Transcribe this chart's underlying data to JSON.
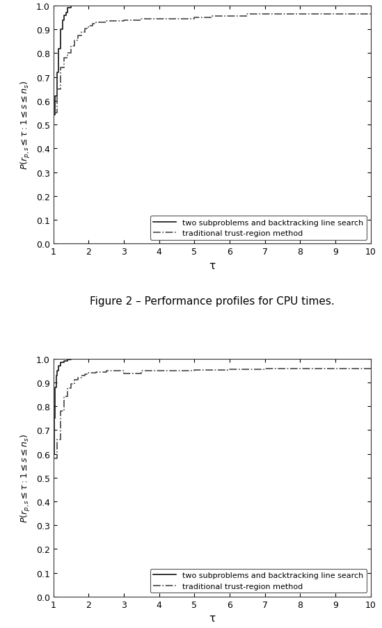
{
  "figure_caption": "Figure 2 – Performance profiles for CPU times.",
  "xlabel": "τ",
  "xlim": [
    1,
    10
  ],
  "ylim": [
    0,
    1.0
  ],
  "xticks": [
    1,
    2,
    3,
    4,
    5,
    6,
    7,
    8,
    9,
    10
  ],
  "yticks": [
    0,
    0.1,
    0.2,
    0.3,
    0.4,
    0.5,
    0.6,
    0.7,
    0.8,
    0.9,
    1.0
  ],
  "legend_labels": [
    "two subproblems and backtracking line search",
    "traditional trust-region method"
  ],
  "line1_color": "#111111",
  "line2_color": "#444444",
  "background_color": "#ffffff",
  "plot1": {
    "solid_x": [
      1.0,
      1.05,
      1.1,
      1.15,
      1.2,
      1.25,
      1.3,
      1.35,
      1.4,
      1.5,
      1.65,
      10.0
    ],
    "solid_y": [
      0.54,
      0.62,
      0.72,
      0.82,
      0.9,
      0.94,
      0.96,
      0.97,
      0.99,
      1.0,
      1.0,
      1.0
    ],
    "dash_x": [
      1.0,
      1.1,
      1.2,
      1.3,
      1.4,
      1.5,
      1.6,
      1.7,
      1.8,
      1.9,
      2.0,
      2.1,
      2.2,
      2.5,
      3.0,
      3.5,
      5.0,
      5.5,
      6.5,
      10.0
    ],
    "dash_y": [
      0.55,
      0.65,
      0.74,
      0.78,
      0.8,
      0.83,
      0.855,
      0.875,
      0.89,
      0.905,
      0.915,
      0.925,
      0.93,
      0.935,
      0.94,
      0.945,
      0.95,
      0.955,
      0.965,
      0.97
    ]
  },
  "plot2": {
    "solid_x": [
      1.0,
      1.02,
      1.05,
      1.08,
      1.1,
      1.15,
      1.2,
      1.3,
      1.4,
      1.5,
      1.6,
      1.7,
      1.8,
      2.0,
      2.1,
      10.0
    ],
    "solid_y": [
      0.6,
      0.75,
      0.88,
      0.93,
      0.95,
      0.97,
      0.985,
      0.99,
      0.995,
      0.998,
      0.999,
      1.0,
      1.0,
      1.0,
      1.0,
      1.0
    ],
    "dash_x": [
      1.0,
      1.1,
      1.2,
      1.3,
      1.4,
      1.5,
      1.6,
      1.7,
      1.8,
      1.9,
      2.0,
      2.2,
      2.5,
      3.0,
      3.5,
      5.0,
      6.0,
      7.0,
      10.0
    ],
    "dash_y": [
      0.58,
      0.66,
      0.78,
      0.84,
      0.875,
      0.895,
      0.91,
      0.92,
      0.93,
      0.935,
      0.94,
      0.945,
      0.95,
      0.938,
      0.948,
      0.952,
      0.955,
      0.958,
      0.96
    ]
  }
}
